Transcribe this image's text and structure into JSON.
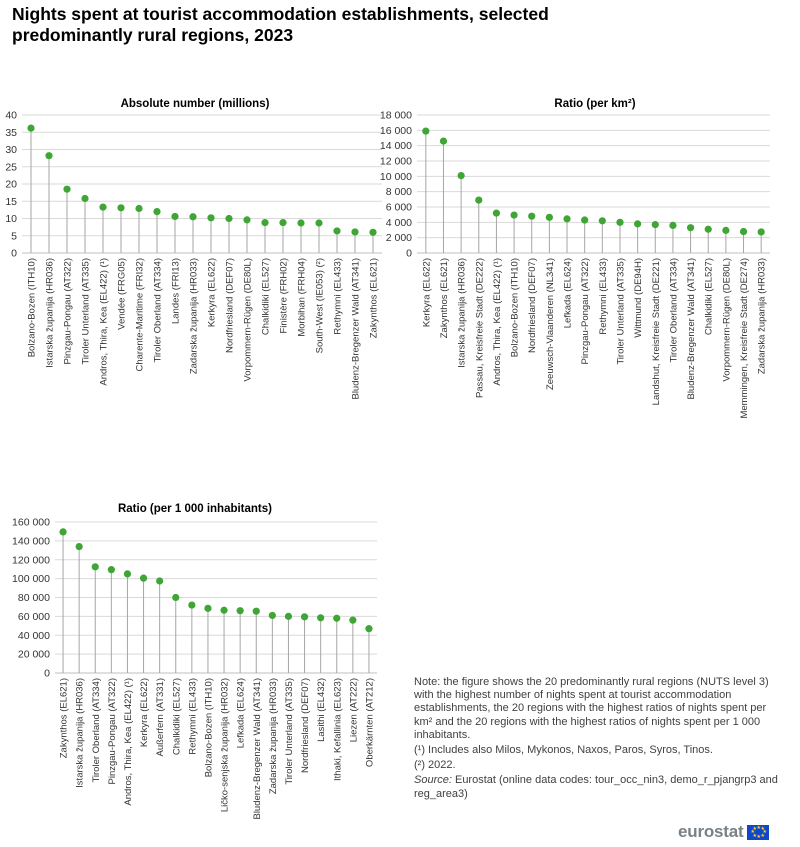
{
  "title": "Nights spent at tourist accommodation establishments, selected predominantly rural regions, 2023",
  "colors": {
    "marker": "#3fa535",
    "stem": "#a6a6a6",
    "grid": "#d9d9d9"
  },
  "chart_data": [
    {
      "type": "scatter",
      "title": "Absolute number (millions)",
      "ylim": [
        0,
        40
      ],
      "yticks": [
        0,
        5,
        10,
        15,
        20,
        25,
        30,
        35,
        40
      ],
      "ytick_labels": [
        "0",
        "5",
        "10",
        "15",
        "20",
        "25",
        "30",
        "35",
        "40"
      ],
      "grid": true,
      "categories": [
        "Bolzano-Bozen (ITH10)",
        "Istarska županija (HR036)",
        "Pinzgau-Pongau (AT322)",
        "Tiroler Unterland (AT335)",
        "Andros, Thira, Kea (EL422) (¹)",
        "Vendée (FRG05)",
        "Charente-Maritime (FRI32)",
        "Tiroler Oberland (AT334)",
        "Landes (FRI13)",
        "Zadarska županija (HR033)",
        "Kerkyra (EL622)",
        "Nordfriesland (DEF07)",
        "Vorpommern-Rügen (DE80L)",
        "Chalkidiki (EL527)",
        "Finistère (FRH02)",
        "Morbihan (FRH04)",
        "South-West (IE053) (²)",
        "Rethymni (EL433)",
        "Bludenz-Bregenzer Wald (AT341)",
        "Zakynthos (EL621)"
      ],
      "values": [
        36.2,
        28.2,
        18.5,
        15.8,
        13.3,
        13.1,
        12.9,
        12.0,
        10.6,
        10.5,
        10.2,
        10.0,
        9.6,
        8.8,
        8.8,
        8.7,
        8.7,
        6.4,
        6.1,
        6.0
      ]
    },
    {
      "type": "scatter",
      "title": "Ratio (per km²)",
      "ylim": [
        0,
        18000
      ],
      "yticks": [
        0,
        2000,
        4000,
        6000,
        8000,
        10000,
        12000,
        14000,
        16000,
        18000
      ],
      "ytick_labels": [
        "0",
        "2 000",
        "4 000",
        "6 000",
        "8 000",
        "10 000",
        "12 000",
        "14 000",
        "16 000",
        "18 000"
      ],
      "grid": true,
      "categories": [
        "Kerkyra (EL622)",
        "Zakynthos (EL621)",
        "Istarska županija (HR036)",
        "Passau, Kreisfreie Stadt (DE222)",
        "Andros, Thira, Kea (EL422) (¹)",
        "Bolzano-Bozen (ITH10)",
        "Nordfriesland (DEF07)",
        "Zeeuwsch-Vlaanderen (NL341)",
        "Lefkada (EL624)",
        "Pinzgau-Pongau (AT322)",
        "Rethymni (EL433)",
        "Tiroler Unterland (AT335)",
        "Wittmund (DE94H)",
        "Landshut, Kreisfreie Stadt (DE221)",
        "Tiroler Oberland (AT334)",
        "Bludenz-Bregenzer Wald (AT341)",
        "Chalkidiki (EL527)",
        "Vorpommern-Rügen (DE80L)",
        "Memmingen, Kreisfreie Stadt (DE274)",
        "Zadarska županija (HR033)"
      ],
      "values": [
        15900,
        14600,
        10100,
        6900,
        5200,
        4950,
        4800,
        4650,
        4450,
        4300,
        4200,
        4000,
        3800,
        3700,
        3600,
        3300,
        3100,
        2950,
        2800,
        2750
      ]
    },
    {
      "type": "scatter",
      "title": "Ratio (per 1 000 inhabitants)",
      "ylim": [
        0,
        160000
      ],
      "yticks": [
        0,
        20000,
        40000,
        60000,
        80000,
        100000,
        120000,
        140000,
        160000
      ],
      "ytick_labels": [
        "0",
        "20 000",
        "40 000",
        "60 000",
        "80 000",
        "100 000",
        "120 000",
        "140 000",
        "160 000"
      ],
      "grid": true,
      "categories": [
        "Zakynthos (EL621)",
        "Istarska županija (HR036)",
        "Tiroler Oberland (AT334)",
        "Pinzgau-Pongau (AT322)",
        "Andros, Thira, Kea (EL422) (¹)",
        "Kerkyra (EL622)",
        "Außerfern (AT331)",
        "Chalkidiki (EL527)",
        "Rethymni (EL433)",
        "Bolzano-Bozen (ITH10)",
        "Ličko-senjska županija (HR032)",
        "Lefkada (EL624)",
        "Bludenz-Bregenzer Wald (AT341)",
        "Zadarska županija (HR033)",
        "Tiroler Unterland (AT335)",
        "Nordfriesland (DEF07)",
        "Lasithi (EL432)",
        "Ithaki, Kefallinia (EL623)",
        "Liezen (AT222)",
        "Oberkärnten (AT212)"
      ],
      "values": [
        149500,
        134000,
        112500,
        109500,
        105000,
        100500,
        97500,
        80000,
        72000,
        68500,
        66500,
        66000,
        65500,
        61000,
        60000,
        59500,
        58500,
        58000,
        56000,
        47000
      ]
    }
  ],
  "notes": {
    "note": "Note: the figure shows the 20 predominantly rural regions (NUTS level 3) with the highest number of nights spent at tourist accommodation establishments, the 20 regions with the highest ratios of nights spent per km² and the 20 regions with the highest ratios of nights spent per 1 000 inhabitants.",
    "footnote1": "(¹) Includes also Milos, Mykonos, Naxos, Paros, Syros, Tinos.",
    "footnote2": "(²) 2022.",
    "source_label": "Source:",
    "source_text": " Eurostat (online data codes: tour_occ_nin3, demo_r_pjangrp3 and reg_area3)"
  },
  "logo": {
    "text": "eurostat",
    "icon": "eu-flag-icon"
  }
}
